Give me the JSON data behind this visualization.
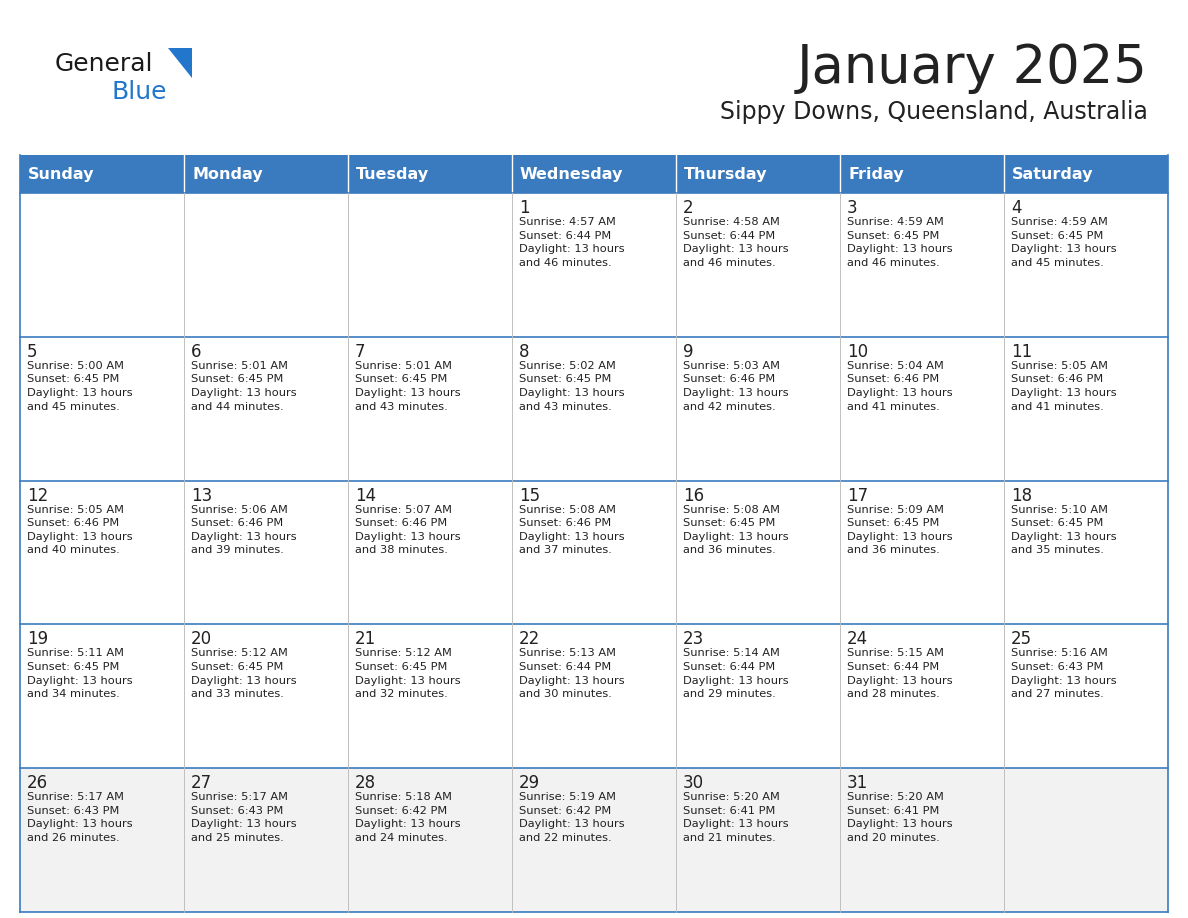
{
  "title": "January 2025",
  "subtitle": "Sippy Downs, Queensland, Australia",
  "header_bg": "#3a7bbf",
  "header_text": "#ffffff",
  "row_bg_odd": "#f2f2f2",
  "row_bg_even": "#ffffff",
  "white_bg": "#ffffff",
  "border_color": "#3a7bbf",
  "cell_border_color": "#c0c0c0",
  "text_color": "#222222",
  "logo_black": "#1a1a1a",
  "logo_blue": "#2277cc",
  "logo_triangle": "#2277cc",
  "days_of_week": [
    "Sunday",
    "Monday",
    "Tuesday",
    "Wednesday",
    "Thursday",
    "Friday",
    "Saturday"
  ],
  "weeks": [
    [
      {
        "day": "",
        "info": ""
      },
      {
        "day": "",
        "info": ""
      },
      {
        "day": "",
        "info": ""
      },
      {
        "day": "1",
        "info": "Sunrise: 4:57 AM\nSunset: 6:44 PM\nDaylight: 13 hours\nand 46 minutes."
      },
      {
        "day": "2",
        "info": "Sunrise: 4:58 AM\nSunset: 6:44 PM\nDaylight: 13 hours\nand 46 minutes."
      },
      {
        "day": "3",
        "info": "Sunrise: 4:59 AM\nSunset: 6:45 PM\nDaylight: 13 hours\nand 46 minutes."
      },
      {
        "day": "4",
        "info": "Sunrise: 4:59 AM\nSunset: 6:45 PM\nDaylight: 13 hours\nand 45 minutes."
      }
    ],
    [
      {
        "day": "5",
        "info": "Sunrise: 5:00 AM\nSunset: 6:45 PM\nDaylight: 13 hours\nand 45 minutes."
      },
      {
        "day": "6",
        "info": "Sunrise: 5:01 AM\nSunset: 6:45 PM\nDaylight: 13 hours\nand 44 minutes."
      },
      {
        "day": "7",
        "info": "Sunrise: 5:01 AM\nSunset: 6:45 PM\nDaylight: 13 hours\nand 43 minutes."
      },
      {
        "day": "8",
        "info": "Sunrise: 5:02 AM\nSunset: 6:45 PM\nDaylight: 13 hours\nand 43 minutes."
      },
      {
        "day": "9",
        "info": "Sunrise: 5:03 AM\nSunset: 6:46 PM\nDaylight: 13 hours\nand 42 minutes."
      },
      {
        "day": "10",
        "info": "Sunrise: 5:04 AM\nSunset: 6:46 PM\nDaylight: 13 hours\nand 41 minutes."
      },
      {
        "day": "11",
        "info": "Sunrise: 5:05 AM\nSunset: 6:46 PM\nDaylight: 13 hours\nand 41 minutes."
      }
    ],
    [
      {
        "day": "12",
        "info": "Sunrise: 5:05 AM\nSunset: 6:46 PM\nDaylight: 13 hours\nand 40 minutes."
      },
      {
        "day": "13",
        "info": "Sunrise: 5:06 AM\nSunset: 6:46 PM\nDaylight: 13 hours\nand 39 minutes."
      },
      {
        "day": "14",
        "info": "Sunrise: 5:07 AM\nSunset: 6:46 PM\nDaylight: 13 hours\nand 38 minutes."
      },
      {
        "day": "15",
        "info": "Sunrise: 5:08 AM\nSunset: 6:46 PM\nDaylight: 13 hours\nand 37 minutes."
      },
      {
        "day": "16",
        "info": "Sunrise: 5:08 AM\nSunset: 6:45 PM\nDaylight: 13 hours\nand 36 minutes."
      },
      {
        "day": "17",
        "info": "Sunrise: 5:09 AM\nSunset: 6:45 PM\nDaylight: 13 hours\nand 36 minutes."
      },
      {
        "day": "18",
        "info": "Sunrise: 5:10 AM\nSunset: 6:45 PM\nDaylight: 13 hours\nand 35 minutes."
      }
    ],
    [
      {
        "day": "19",
        "info": "Sunrise: 5:11 AM\nSunset: 6:45 PM\nDaylight: 13 hours\nand 34 minutes."
      },
      {
        "day": "20",
        "info": "Sunrise: 5:12 AM\nSunset: 6:45 PM\nDaylight: 13 hours\nand 33 minutes."
      },
      {
        "day": "21",
        "info": "Sunrise: 5:12 AM\nSunset: 6:45 PM\nDaylight: 13 hours\nand 32 minutes."
      },
      {
        "day": "22",
        "info": "Sunrise: 5:13 AM\nSunset: 6:44 PM\nDaylight: 13 hours\nand 30 minutes."
      },
      {
        "day": "23",
        "info": "Sunrise: 5:14 AM\nSunset: 6:44 PM\nDaylight: 13 hours\nand 29 minutes."
      },
      {
        "day": "24",
        "info": "Sunrise: 5:15 AM\nSunset: 6:44 PM\nDaylight: 13 hours\nand 28 minutes."
      },
      {
        "day": "25",
        "info": "Sunrise: 5:16 AM\nSunset: 6:43 PM\nDaylight: 13 hours\nand 27 minutes."
      }
    ],
    [
      {
        "day": "26",
        "info": "Sunrise: 5:17 AM\nSunset: 6:43 PM\nDaylight: 13 hours\nand 26 minutes."
      },
      {
        "day": "27",
        "info": "Sunrise: 5:17 AM\nSunset: 6:43 PM\nDaylight: 13 hours\nand 25 minutes."
      },
      {
        "day": "28",
        "info": "Sunrise: 5:18 AM\nSunset: 6:42 PM\nDaylight: 13 hours\nand 24 minutes."
      },
      {
        "day": "29",
        "info": "Sunrise: 5:19 AM\nSunset: 6:42 PM\nDaylight: 13 hours\nand 22 minutes."
      },
      {
        "day": "30",
        "info": "Sunrise: 5:20 AM\nSunset: 6:41 PM\nDaylight: 13 hours\nand 21 minutes."
      },
      {
        "day": "31",
        "info": "Sunrise: 5:20 AM\nSunset: 6:41 PM\nDaylight: 13 hours\nand 20 minutes."
      },
      {
        "day": "",
        "info": ""
      }
    ]
  ]
}
